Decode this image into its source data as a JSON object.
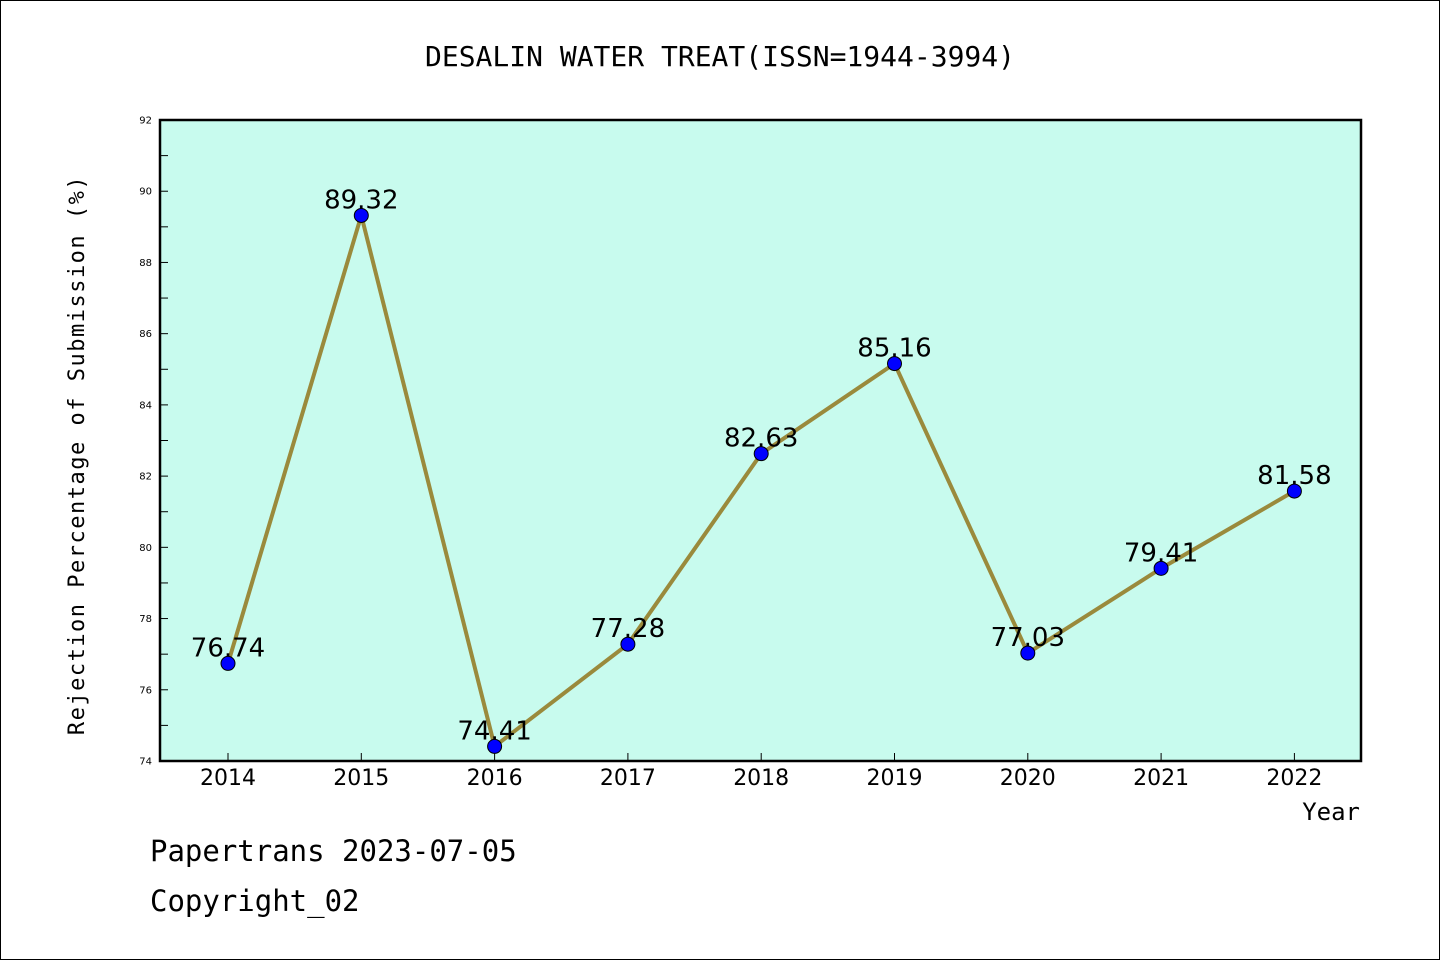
{
  "footer": {
    "line1": "Papertrans 2023-07-05",
    "line2": "Copyright_02"
  },
  "colors": {
    "plot_background": "#c8fbee",
    "line": "#9a8a3c",
    "marker": "#0000ff"
  },
  "chart_data": {
    "type": "line",
    "title": "DESALIN WATER TREAT(ISSN=1944-3994)",
    "xlabel": "Year",
    "ylabel": "Rejection Percentage of Submission (%)",
    "categories": [
      "2014",
      "2015",
      "2016",
      "2017",
      "2018",
      "2019",
      "2020",
      "2021",
      "2022"
    ],
    "values": [
      76.74,
      89.32,
      74.41,
      77.28,
      82.63,
      85.16,
      77.03,
      79.41,
      81.58
    ],
    "data_labels": [
      "76.74",
      "89.32",
      "74.41",
      "77.28",
      "82.63",
      "85.16",
      "77.03",
      "79.41",
      "81.58"
    ],
    "ylim": [
      74,
      92
    ],
    "yticks": [
      "74",
      "76",
      "78",
      "80",
      "82",
      "84",
      "86",
      "88",
      "90",
      "92"
    ],
    "grid": false,
    "legend": "none"
  }
}
